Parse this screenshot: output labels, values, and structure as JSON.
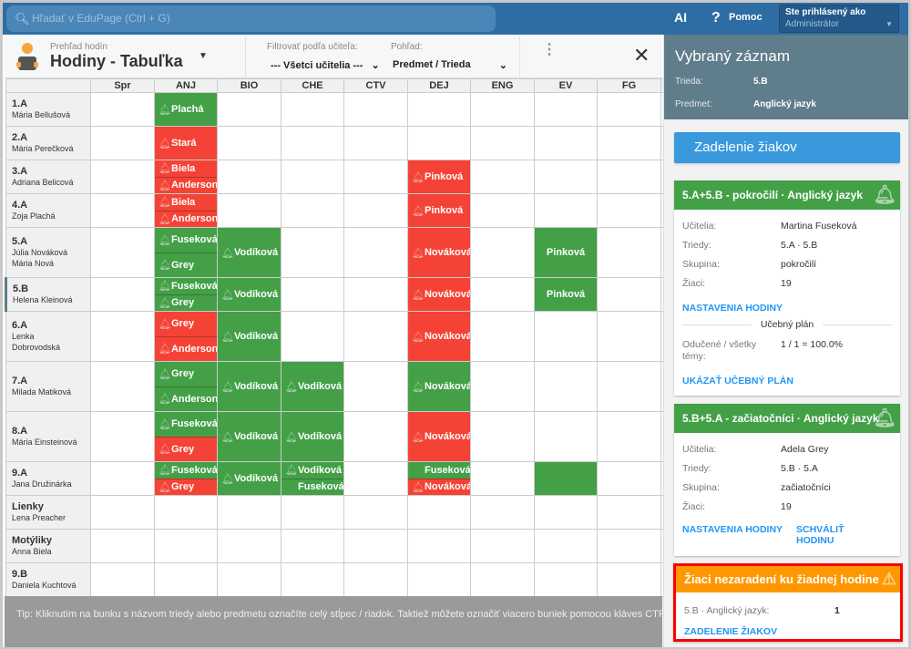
{
  "topbar": {
    "search_placeholder": "Hľadať v EduPage (Ctrl + G)",
    "ai": "AI",
    "help": "Pomoc",
    "login_label": "Ste prihlásený ako",
    "login_role": "Administrátor"
  },
  "header": {
    "subtitle": "Prehľad hodín",
    "title": "Hodiny - Tabuľka",
    "filter_label": "Filtrovať podľa učiteľa:",
    "filter_value": "--- Všetci učitelia ---",
    "view_label": "Pohľad:",
    "view_value": "Predmet / Trieda"
  },
  "colors": {
    "green": "#43a047",
    "red": "#f44336",
    "orange": "#ff9800",
    "accent": "#2d6da3"
  },
  "table": {
    "columns": [
      "Spr",
      "ANJ",
      "BIO",
      "CHE",
      "CTV",
      "DEJ",
      "ENG",
      "EV",
      "FG"
    ],
    "rows": [
      {
        "cls": "1.A",
        "teachers": [
          "Mária Bellušová"
        ],
        "cells": {
          "ANJ": [
            {
              "t": "Plachá",
              "c": "g",
              "b": true
            }
          ]
        }
      },
      {
        "cls": "2.A",
        "teachers": [
          "Mária Perečková"
        ],
        "cells": {
          "ANJ": [
            {
              "t": "Stará",
              "c": "r",
              "b": true
            }
          ]
        }
      },
      {
        "cls": "3.A",
        "teachers": [
          "Adriana Belicová"
        ],
        "cells": {
          "ANJ": [
            {
              "t": "Biela",
              "c": "r",
              "b": true
            },
            {
              "t": "Anderson",
              "c": "r",
              "b": true
            }
          ],
          "DEJ": [
            {
              "t": "Pinková",
              "c": "r",
              "b": true
            }
          ]
        }
      },
      {
        "cls": "4.A",
        "teachers": [
          "Zoja Plachá"
        ],
        "cells": {
          "ANJ": [
            {
              "t": "Biela",
              "c": "r",
              "b": true
            },
            {
              "t": "Anderson",
              "c": "r",
              "b": true
            }
          ],
          "DEJ": [
            {
              "t": "Pinková",
              "c": "r",
              "b": true
            }
          ]
        }
      },
      {
        "cls": "5.A",
        "teachers": [
          "Júlia Nováková",
          "Mária Nová"
        ],
        "cells": {
          "ANJ": [
            {
              "t": "Fuseková",
              "c": "g",
              "b": true
            },
            {
              "t": "Grey",
              "c": "g",
              "b": true
            }
          ],
          "BIO": [
            {
              "t": "Vodíková",
              "c": "g",
              "b": true
            }
          ],
          "DEJ": [
            {
              "t": "Nováková",
              "c": "r",
              "b": true
            }
          ],
          "EV": [
            {
              "t": "Pinková",
              "c": "g",
              "b": false
            }
          ],
          "_next": "g"
        }
      },
      {
        "cls": "5.B",
        "teachers": [
          "Helena Kleinová"
        ],
        "selected": "ANJ",
        "cells": {
          "ANJ": [
            {
              "t": "Fuseková",
              "c": "g",
              "b": true
            },
            {
              "t": "Grey",
              "c": "g",
              "b": true
            }
          ],
          "BIO": [
            {
              "t": "Vodíková",
              "c": "g",
              "b": true
            }
          ],
          "DEJ": [
            {
              "t": "Nováková",
              "c": "r",
              "b": true
            }
          ],
          "EV": [
            {
              "t": "Pinková",
              "c": "g",
              "b": false
            }
          ]
        }
      },
      {
        "cls": "6.A",
        "teachers": [
          "Lenka Dobrovodská"
        ],
        "cells": {
          "ANJ": [
            {
              "t": "Grey",
              "c": "r",
              "b": true
            },
            {
              "t": "Anderson",
              "c": "r",
              "b": true
            }
          ],
          "BIO": [
            {
              "t": "Vodíková",
              "c": "g",
              "b": true
            }
          ],
          "DEJ": [
            {
              "t": "Nováková",
              "c": "r",
              "b": true
            }
          ],
          "_next": "r"
        }
      },
      {
        "cls": "7.A",
        "teachers": [
          "Milada Matiková"
        ],
        "cells": {
          "ANJ": [
            {
              "t": "Grey",
              "c": "g",
              "b": true
            },
            {
              "t": "Anderson",
              "c": "g",
              "b": true
            }
          ],
          "BIO": [
            {
              "t": "Vodíková",
              "c": "g",
              "b": true
            }
          ],
          "CHE": [
            {
              "t": "Vodíková",
              "c": "g",
              "b": true
            }
          ],
          "DEJ": [
            {
              "t": "Nováková",
              "c": "g",
              "b": true
            }
          ],
          "_next": "g"
        }
      },
      {
        "cls": "8.A",
        "teachers": [
          "Mária Einsteinová"
        ],
        "cells": {
          "ANJ": [
            {
              "t": "Fuseková",
              "c": "g",
              "b": true
            },
            {
              "t": "Grey",
              "c": "r",
              "b": true
            }
          ],
          "BIO": [
            {
              "t": "Vodíková",
              "c": "g",
              "b": true
            }
          ],
          "CHE": [
            {
              "t": "Vodíková",
              "c": "g",
              "b": true
            }
          ],
          "DEJ": [
            {
              "t": "Nováková",
              "c": "r",
              "b": true
            }
          ],
          "_next": "g"
        }
      },
      {
        "cls": "9.A",
        "teachers": [
          "Jana Družinárka"
        ],
        "cells": {
          "ANJ": [
            {
              "t": "Fuseková",
              "c": "g",
              "b": true
            },
            {
              "t": "Grey",
              "c": "r",
              "b": true
            }
          ],
          "BIO": [
            {
              "t": "Vodíková",
              "c": "g",
              "b": true
            }
          ],
          "CHE": [
            {
              "t": "Vodíková",
              "c": "g",
              "b": true
            },
            {
              "t": "Fuseková",
              "c": "g",
              "b": false
            }
          ],
          "DEJ": [
            {
              "t": "Fuseková",
              "c": "g",
              "b": false
            },
            {
              "t": "Nováková",
              "c": "r",
              "b": true
            }
          ],
          "EV": [
            {
              "t": "",
              "c": "g",
              "b": false
            }
          ],
          "_next": "r"
        }
      },
      {
        "cls": "Lienky",
        "teachers": [
          "Lena Preacher"
        ],
        "cells": {}
      },
      {
        "cls": "Motýliky",
        "teachers": [
          "Anna Biela"
        ],
        "cells": {}
      },
      {
        "cls": "9.B",
        "teachers": [
          "Daniela Kuchtová"
        ],
        "cells": {}
      }
    ]
  },
  "tip": "Tip: Kliknutím na bunku s názvom triedy alebo predmetu označíte celý stĺpec / riadok. Taktiež môžete označiť viacero buniek pomocou kláves CTRL + ...",
  "panel": {
    "title": "Vybraný záznam",
    "class_label": "Trieda:",
    "class_value": "5.B",
    "subject_label": "Predmet:",
    "subject_value": "Anglický jazyk",
    "assign_button": "Zadelenie žiakov",
    "card1": {
      "title": "5.A+5.B - pokročilí · Anglický jazyk",
      "teachers_label": "Učitelia:",
      "teachers": "Martina Fuseková",
      "classes_label": "Triedy:",
      "classes": "5.A · 5.B",
      "group_label": "Skupina:",
      "group": "pokročilí",
      "students_label": "Žiaci:",
      "students": "19",
      "settings_link": "NASTAVENIA HODINY",
      "plan_title": "Učebný plán",
      "taught_label": "Odučené / všetky témy:",
      "taught_value": "1 / 1 = 100.0%",
      "plan_link": "UKÁZAŤ UČEBNÝ PLÁN"
    },
    "card2": {
      "title": "5.B+5.A - začiatočníci · Anglický jazyk",
      "teachers_label": "Učitelia:",
      "teachers": "Adela Grey",
      "classes_label": "Triedy:",
      "classes": "5.B · 5.A",
      "group_label": "Skupina:",
      "group": "začiatočníci",
      "students_label": "Žiaci:",
      "students": "19",
      "settings_link": "NASTAVENIA HODINY",
      "approve_link": "SCHVÁLIŤ HODINU"
    },
    "warning": {
      "title": "Žiaci nezaradení ku žiadnej hodine",
      "item_label": "5.B · Anglický jazyk:",
      "item_value": "1",
      "link": "ZADELENIE ŽIAKOV"
    }
  }
}
